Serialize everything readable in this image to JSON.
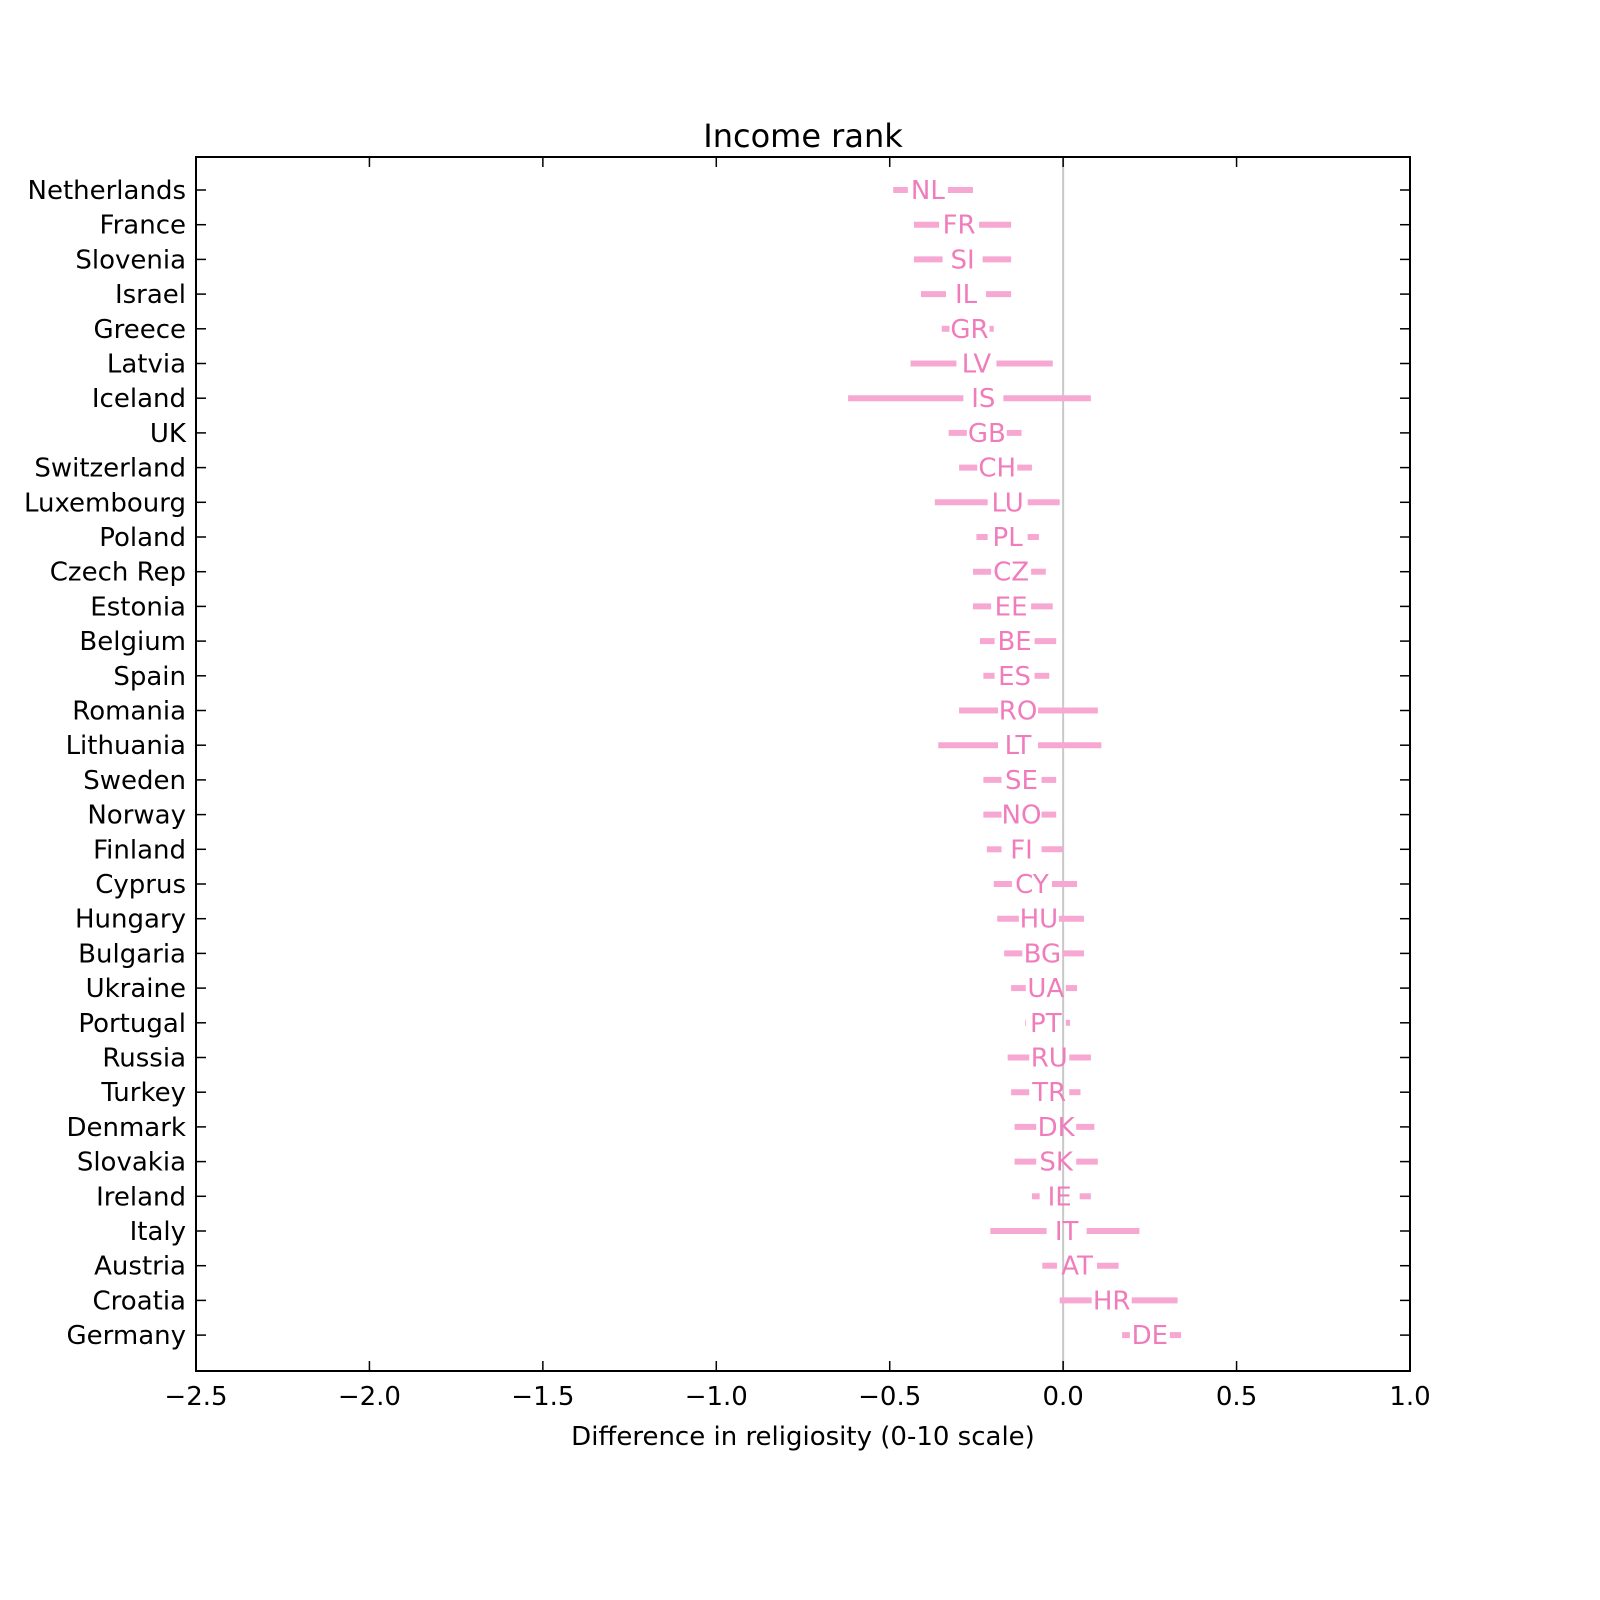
{
  "chart_data": {
    "type": "interval",
    "title": "Income rank",
    "xlabel": "Difference in religiosity (0-10 scale)",
    "ylabel": "",
    "xlim": [
      -2.5,
      1.0
    ],
    "xticks": [
      -2.5,
      -2.0,
      -1.5,
      -1.0,
      -0.5,
      0.0,
      0.5,
      1.0
    ],
    "xtick_labels": [
      "−2.5",
      "−2.0",
      "−1.5",
      "−1.0",
      "−0.5",
      "0.0",
      "0.5",
      "1.0"
    ],
    "reference_line": 0.0,
    "color": "#f7a8d2",
    "label_color": "#f07cbc",
    "grid": false,
    "rows": [
      {
        "country": "Netherlands",
        "code": "NL",
        "low": -0.49,
        "mid": -0.39,
        "high": -0.26
      },
      {
        "country": "France",
        "code": "FR",
        "low": -0.43,
        "mid": -0.3,
        "high": -0.15
      },
      {
        "country": "Slovenia",
        "code": "SI",
        "low": -0.43,
        "mid": -0.29,
        "high": -0.15
      },
      {
        "country": "Israel",
        "code": "IL",
        "low": -0.41,
        "mid": -0.28,
        "high": -0.15
      },
      {
        "country": "Greece",
        "code": "GR",
        "low": -0.35,
        "mid": -0.27,
        "high": -0.2
      },
      {
        "country": "Latvia",
        "code": "LV",
        "low": -0.44,
        "mid": -0.25,
        "high": -0.03
      },
      {
        "country": "Iceland",
        "code": "IS",
        "low": -0.62,
        "mid": -0.23,
        "high": 0.08
      },
      {
        "country": "UK",
        "code": "GB",
        "low": -0.33,
        "mid": -0.22,
        "high": -0.12
      },
      {
        "country": "Switzerland",
        "code": "CH",
        "low": -0.3,
        "mid": -0.19,
        "high": -0.09
      },
      {
        "country": "Luxembourg",
        "code": "LU",
        "low": -0.37,
        "mid": -0.16,
        "high": -0.01
      },
      {
        "country": "Poland",
        "code": "PL",
        "low": -0.25,
        "mid": -0.16,
        "high": -0.07
      },
      {
        "country": "Czech Rep",
        "code": "CZ",
        "low": -0.26,
        "mid": -0.15,
        "high": -0.05
      },
      {
        "country": "Estonia",
        "code": "EE",
        "low": -0.26,
        "mid": -0.15,
        "high": -0.03
      },
      {
        "country": "Belgium",
        "code": "BE",
        "low": -0.24,
        "mid": -0.14,
        "high": -0.02
      },
      {
        "country": "Spain",
        "code": "ES",
        "low": -0.23,
        "mid": -0.14,
        "high": -0.04
      },
      {
        "country": "Romania",
        "code": "RO",
        "low": -0.3,
        "mid": -0.13,
        "high": 0.1
      },
      {
        "country": "Lithuania",
        "code": "LT",
        "low": -0.36,
        "mid": -0.13,
        "high": 0.11
      },
      {
        "country": "Sweden",
        "code": "SE",
        "low": -0.23,
        "mid": -0.12,
        "high": -0.02
      },
      {
        "country": "Norway",
        "code": "NO",
        "low": -0.23,
        "mid": -0.12,
        "high": -0.02
      },
      {
        "country": "Finland",
        "code": "FI",
        "low": -0.22,
        "mid": -0.12,
        "high": 0.0
      },
      {
        "country": "Cyprus",
        "code": "CY",
        "low": -0.2,
        "mid": -0.09,
        "high": 0.04
      },
      {
        "country": "Hungary",
        "code": "HU",
        "low": -0.19,
        "mid": -0.07,
        "high": 0.06
      },
      {
        "country": "Bulgaria",
        "code": "BG",
        "low": -0.17,
        "mid": -0.06,
        "high": 0.06
      },
      {
        "country": "Ukraine",
        "code": "UA",
        "low": -0.15,
        "mid": -0.05,
        "high": 0.04
      },
      {
        "country": "Portugal",
        "code": "PT",
        "low": -0.11,
        "mid": -0.05,
        "high": 0.02
      },
      {
        "country": "Russia",
        "code": "RU",
        "low": -0.16,
        "mid": -0.04,
        "high": 0.08
      },
      {
        "country": "Turkey",
        "code": "TR",
        "low": -0.15,
        "mid": -0.04,
        "high": 0.05
      },
      {
        "country": "Denmark",
        "code": "DK",
        "low": -0.14,
        "mid": -0.02,
        "high": 0.09
      },
      {
        "country": "Slovakia",
        "code": "SK",
        "low": -0.14,
        "mid": -0.02,
        "high": 0.1
      },
      {
        "country": "Ireland",
        "code": "IE",
        "low": -0.09,
        "mid": -0.01,
        "high": 0.08
      },
      {
        "country": "Italy",
        "code": "IT",
        "low": -0.21,
        "mid": 0.01,
        "high": 0.22
      },
      {
        "country": "Austria",
        "code": "AT",
        "low": -0.06,
        "mid": 0.04,
        "high": 0.16
      },
      {
        "country": "Croatia",
        "code": "HR",
        "low": -0.01,
        "mid": 0.14,
        "high": 0.33
      },
      {
        "country": "Germany",
        "code": "DE",
        "low": 0.17,
        "mid": 0.25,
        "high": 0.34
      }
    ]
  }
}
